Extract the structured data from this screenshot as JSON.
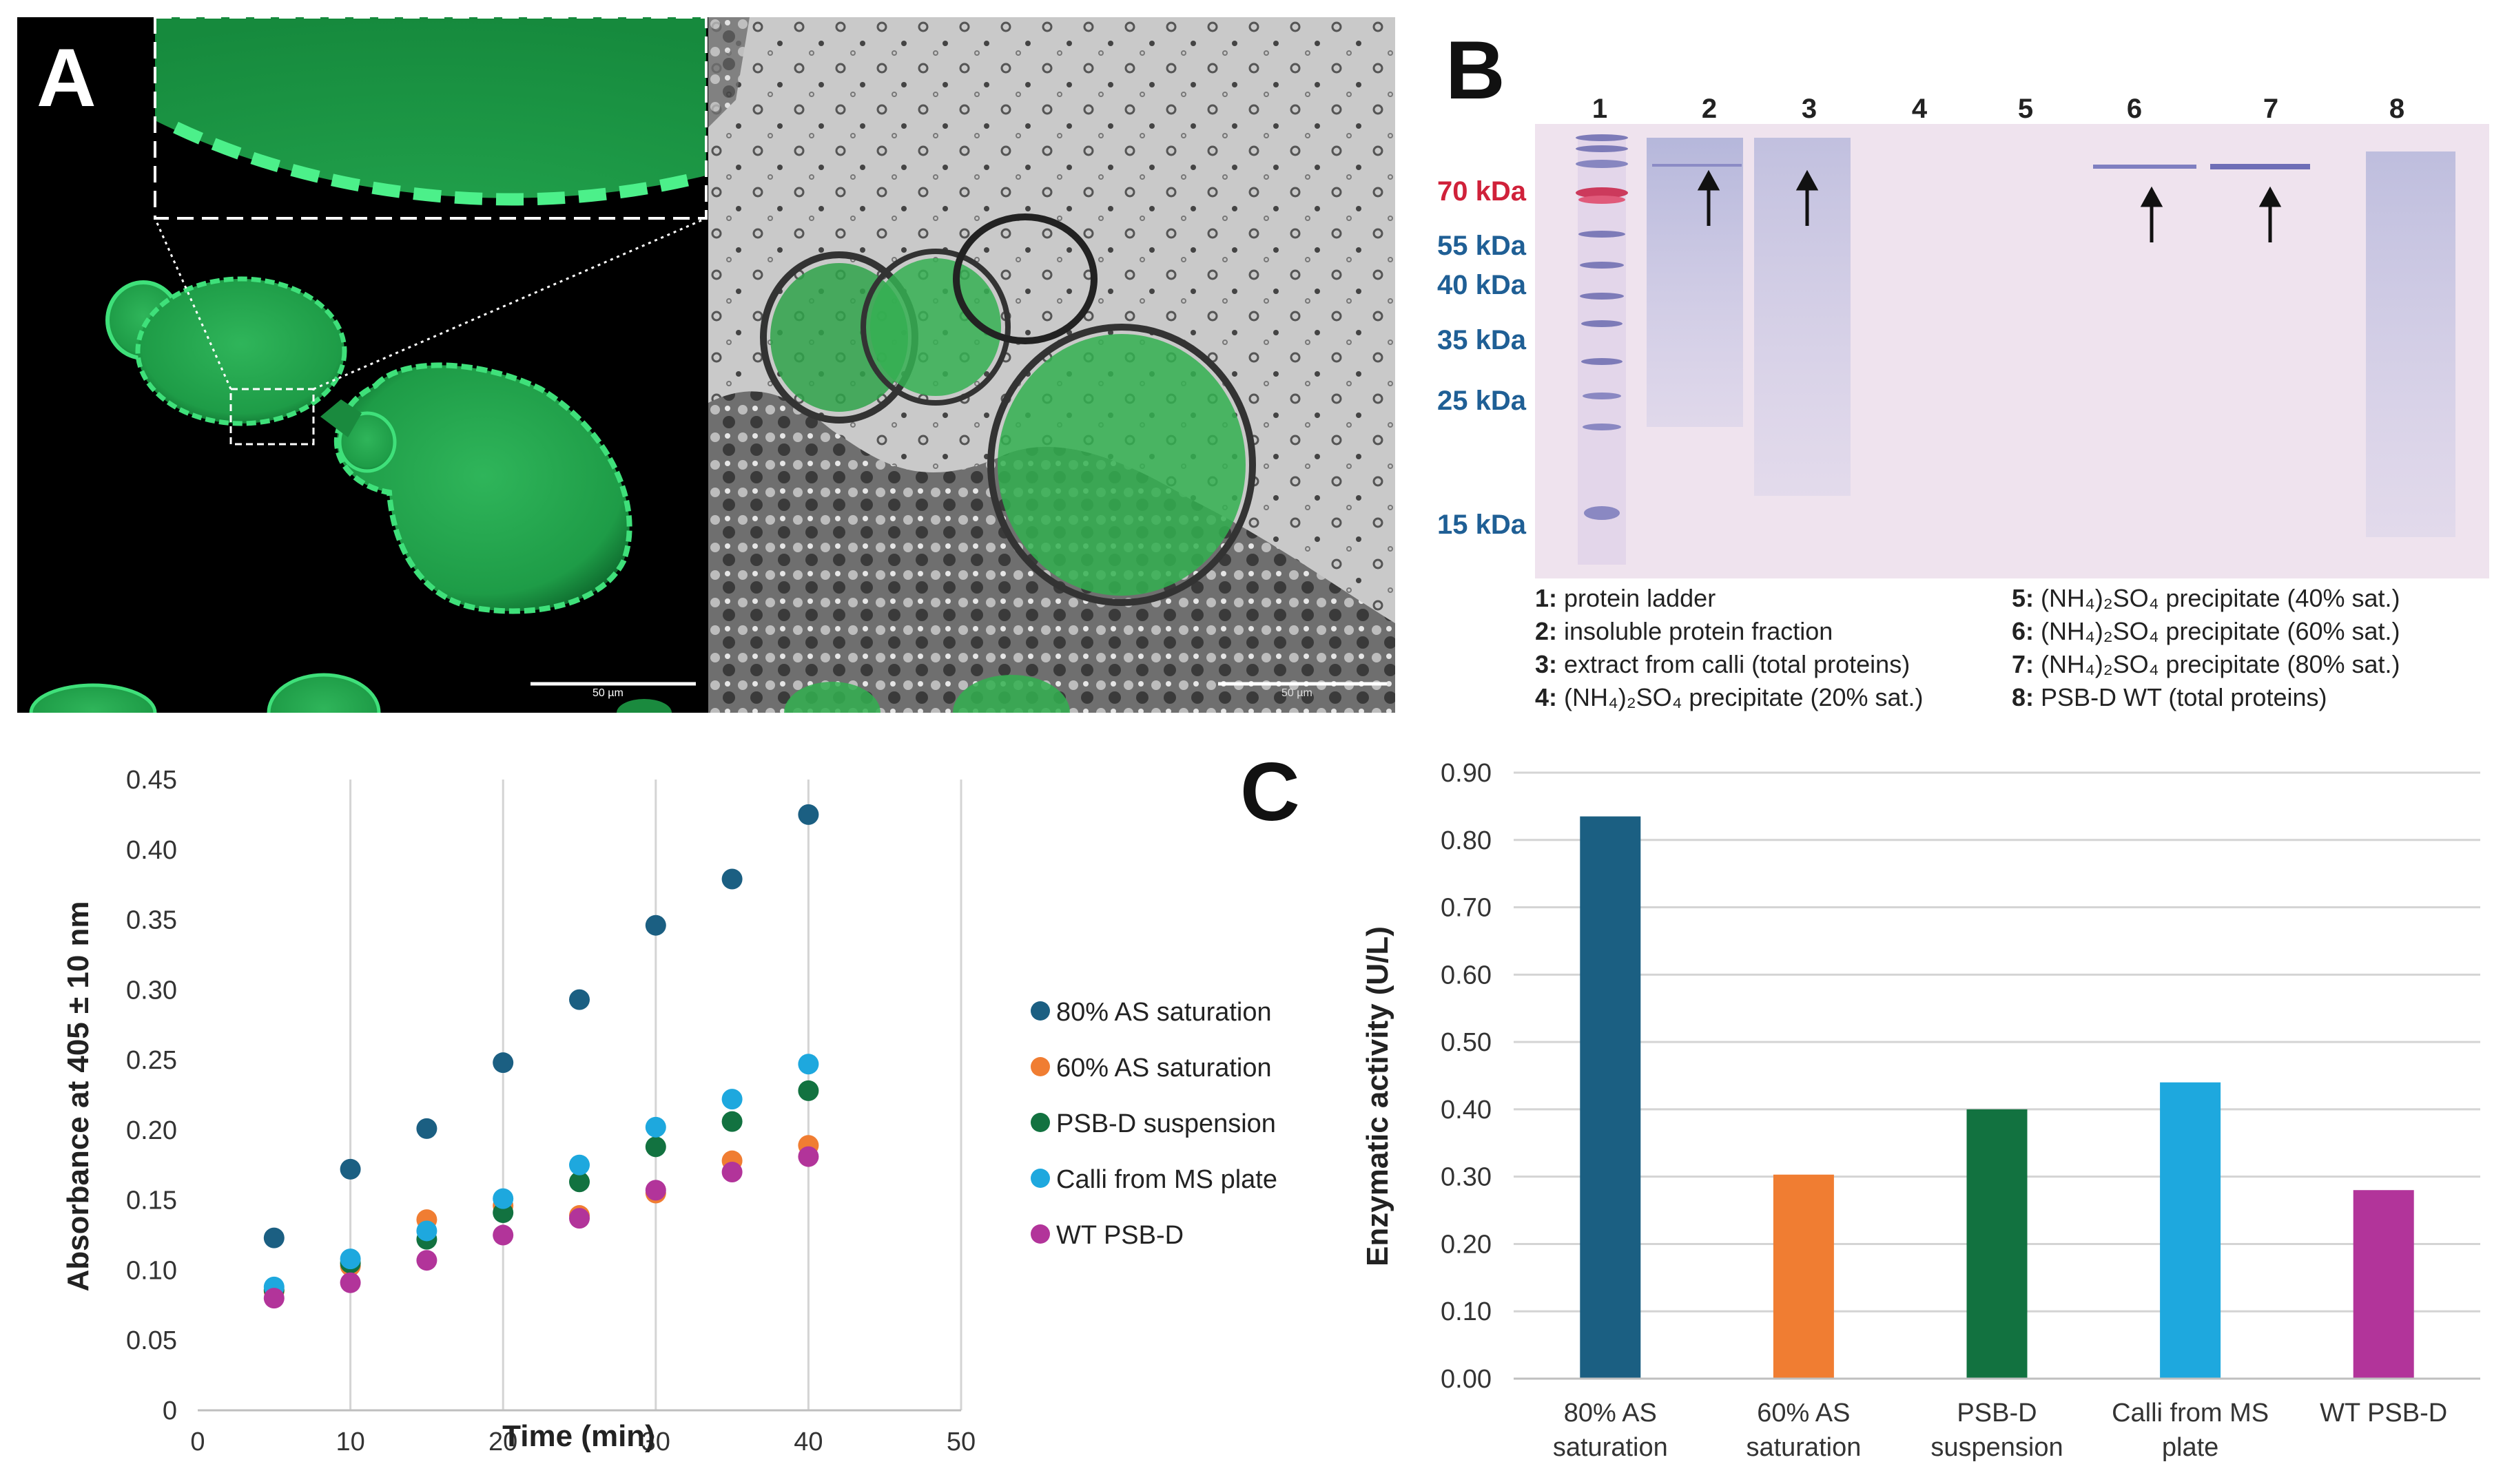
{
  "panel_a": {
    "letter": "A",
    "scalebar_left": "50 µm",
    "scalebar_right": "50 µm"
  },
  "panel_b": {
    "letter": "B",
    "lanes": [
      "1",
      "2",
      "3",
      "4",
      "5",
      "6",
      "7",
      "8"
    ],
    "markers": [
      "70 kDa",
      "55 kDa",
      "40 kDa",
      "35 kDa",
      "25 kDa",
      "15 kDa"
    ],
    "marker_colors": [
      "#d0213a",
      "#1f5f95",
      "#1f5f95",
      "#1f5f95",
      "#1f5f95",
      "#1f5f95"
    ],
    "legend_left": [
      {
        "num": "1:",
        "text": "protein ladder"
      },
      {
        "num": "2:",
        "text": "insoluble protein fraction"
      },
      {
        "num": "3:",
        "text": "extract from calli (total proteins)"
      },
      {
        "num": "4:",
        "text": "(NH₄)₂SO₄ precipitate (20% sat.)"
      }
    ],
    "legend_right": [
      {
        "num": "5:",
        "text": "(NH₄)₂SO₄ precipitate (40% sat.)"
      },
      {
        "num": "6:",
        "text": "(NH₄)₂SO₄ precipitate (60% sat.)"
      },
      {
        "num": "7:",
        "text": "(NH₄)₂SO₄ precipitate (80% sat.)"
      },
      {
        "num": "8:",
        "text": "PSB-D WT (total proteins)"
      }
    ]
  },
  "panel_c": {
    "letter": "C"
  },
  "chart_data": [
    {
      "type": "scatter",
      "title": "",
      "xlabel": "Time (min)",
      "ylabel": "Absorbance at 405 ± 10 nm",
      "xlim": [
        0,
        50
      ],
      "ylim": [
        0,
        0.45
      ],
      "xticks": [
        "0",
        "10",
        "20",
        "30",
        "40",
        "50"
      ],
      "yticks": [
        "0",
        "0.05",
        "0.10",
        "0.15",
        "0.20",
        "0.25",
        "0.30",
        "0.35",
        "0.40",
        "0.45"
      ],
      "grid": "vertical",
      "legend": "right",
      "x": [
        5,
        10,
        15,
        20,
        25,
        30,
        35,
        40
      ],
      "series": [
        {
          "name": "80% AS saturation",
          "color": "#1b5f82",
          "values": [
            0.123,
            0.172,
            0.201,
            0.248,
            0.293,
            0.346,
            0.379,
            0.425
          ]
        },
        {
          "name": "60% AS saturation",
          "color": "#f07d32",
          "values": [
            0.085,
            0.103,
            0.136,
            0.146,
            0.139,
            0.155,
            0.178,
            0.189
          ]
        },
        {
          "name": "PSB-D suspension",
          "color": "#127240",
          "values": [
            0.086,
            0.105,
            0.122,
            0.141,
            0.163,
            0.188,
            0.206,
            0.228
          ]
        },
        {
          "name": "Calli from MS plate",
          "color": "#1ea8de",
          "values": [
            0.088,
            0.108,
            0.128,
            0.151,
            0.175,
            0.202,
            0.222,
            0.247
          ]
        },
        {
          "name": "WT PSB-D",
          "color": "#b2349a",
          "values": [
            0.08,
            0.091,
            0.107,
            0.125,
            0.137,
            0.157,
            0.17,
            0.181
          ]
        }
      ]
    },
    {
      "type": "bar",
      "title": "",
      "xlabel": "",
      "ylabel": "Enzymatic activity (U/L)",
      "ylim": [
        0,
        0.9
      ],
      "yticks": [
        "0.00",
        "0.10",
        "0.20",
        "0.30",
        "0.40",
        "0.50",
        "0.60",
        "0.70",
        "0.80",
        "0.90"
      ],
      "grid": "horizontal",
      "categories": [
        [
          "80% AS",
          "saturation"
        ],
        [
          "60% AS",
          "saturation"
        ],
        [
          "PSB-D",
          "suspension"
        ],
        [
          "Calli from MS",
          "plate"
        ],
        [
          "WT PSB-D"
        ]
      ],
      "colors": [
        "#1b5f82",
        "#f07d32",
        "#127240",
        "#1ea8de",
        "#b2349a"
      ],
      "values": [
        0.835,
        0.303,
        0.4,
        0.44,
        0.28
      ]
    }
  ]
}
